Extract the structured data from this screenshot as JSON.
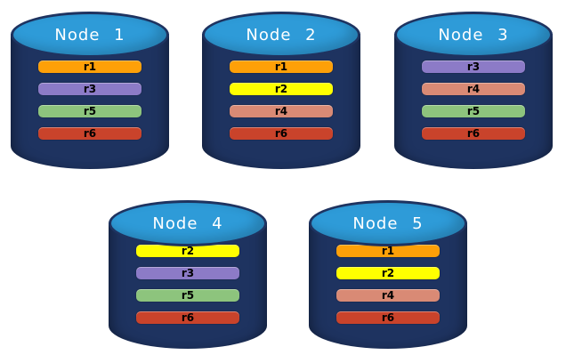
{
  "diagram": {
    "description": "Database cluster replica placement diagram with five cylinder nodes",
    "colors": {
      "cylinder_body": "#1E3360",
      "cylinder_top": "#2E9BD8",
      "node_title_text": "#FFFFFF",
      "replica_label_text": "#000000",
      "background": "#FFFFFF"
    },
    "replica_colors": {
      "r1": "#FEA008",
      "r2": "#FFFF00",
      "r3": "#8C7BC7",
      "r4": "#D98A75",
      "r5": "#8DC47D",
      "r6": "#C9432B"
    },
    "nodes": [
      {
        "label": "Node 1",
        "replicas": [
          "r1",
          "r3",
          "r5",
          "r6"
        ]
      },
      {
        "label": "Node 2",
        "replicas": [
          "r1",
          "r2",
          "r4",
          "r6"
        ]
      },
      {
        "label": "Node 3",
        "replicas": [
          "r3",
          "r4",
          "r5",
          "r6"
        ]
      },
      {
        "label": "Node 4",
        "replicas": [
          "r2",
          "r3",
          "r5",
          "r6"
        ]
      },
      {
        "label": "Node 5",
        "replicas": [
          "r1",
          "r2",
          "r4",
          "r6"
        ]
      }
    ]
  }
}
